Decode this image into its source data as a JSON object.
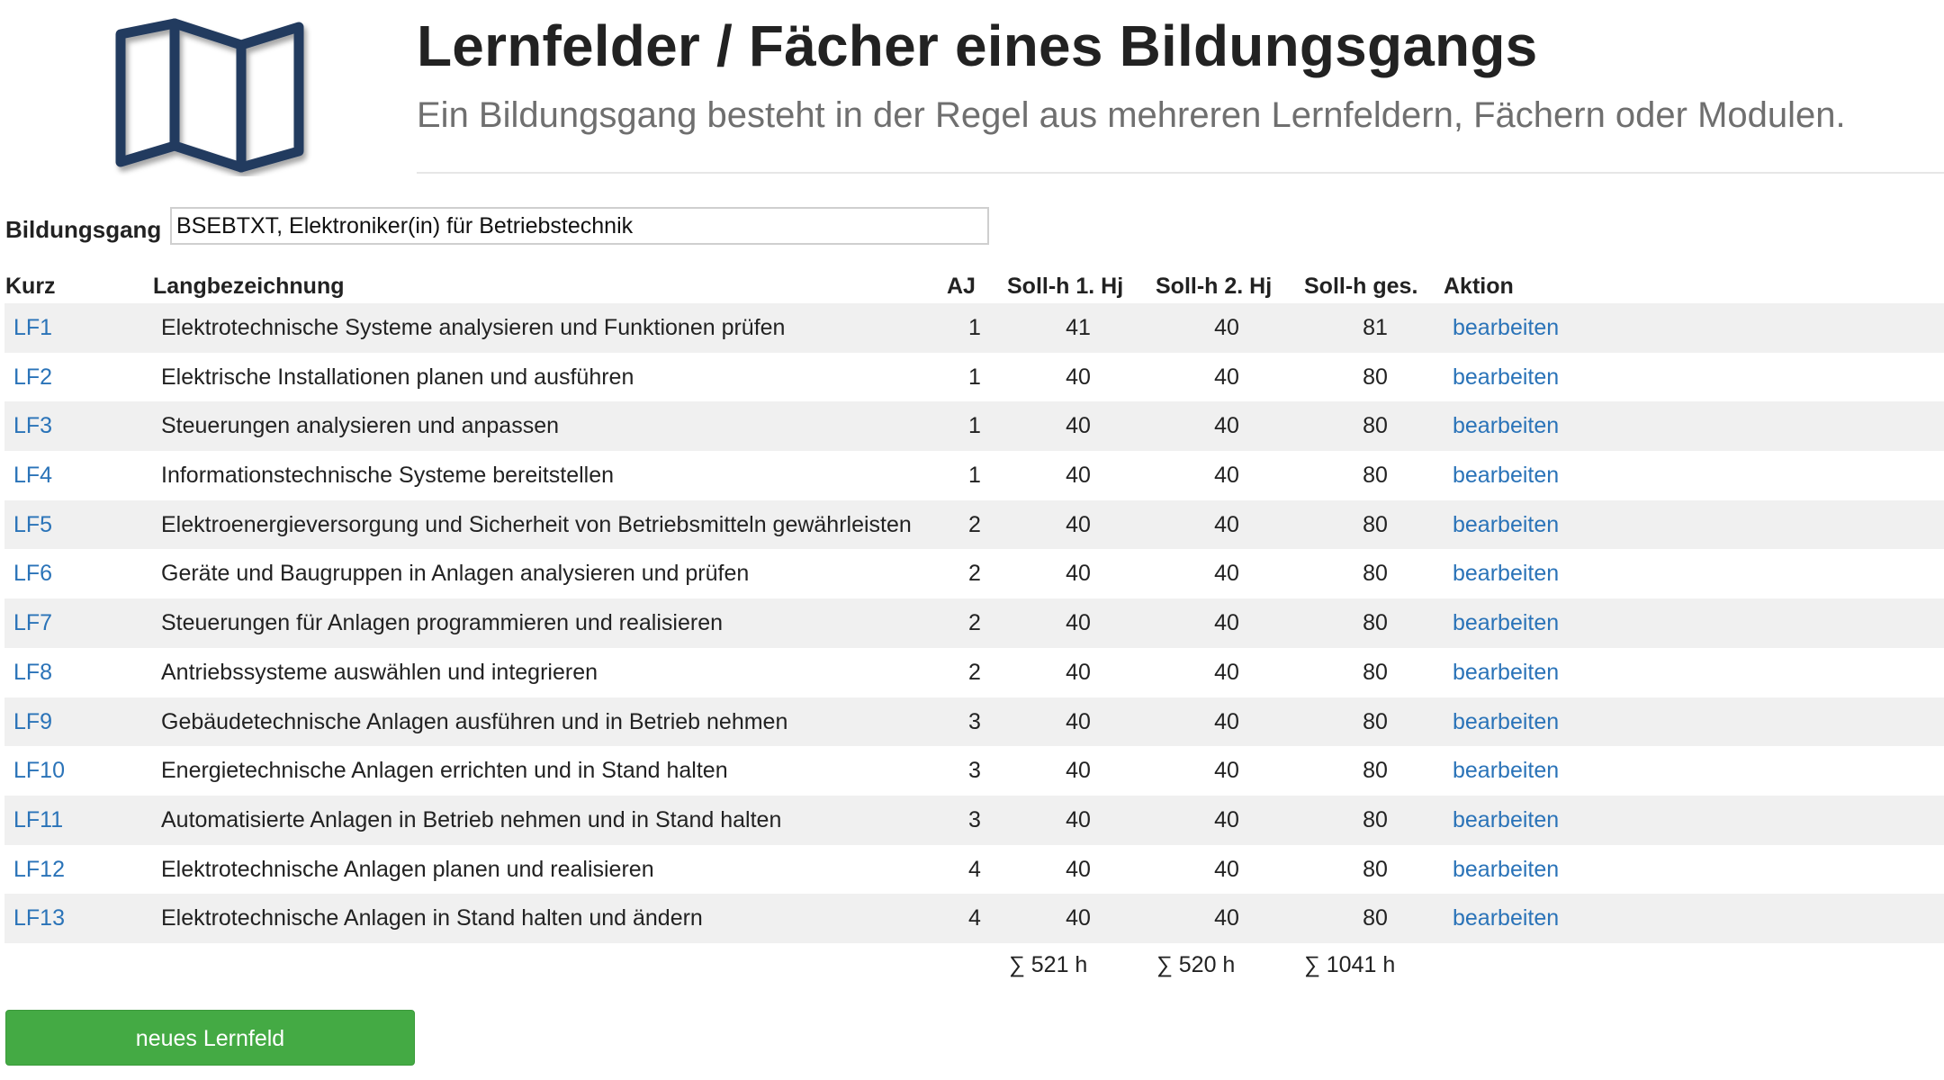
{
  "header": {
    "logo_icon": "folded-map-icon",
    "title": "Lernfelder / Fächer eines Bildungsgangs",
    "subtitle": "Ein Bildungsgang besteht in der Regel aus mehreren Lernfeldern, Fächern oder Modulen."
  },
  "form": {
    "bildungsgang_label": "Bildungsgang",
    "bildungsgang_value": "BSEBTXT, Elektroniker(in) für Betriebstechnik"
  },
  "table": {
    "headers": {
      "kurz": "Kurz",
      "lang": "Langbezeichnung",
      "aj": "AJ",
      "h1": "Soll-h 1. Hj",
      "h2": "Soll-h 2. Hj",
      "hg": "Soll-h ges.",
      "aktion": "Aktion"
    },
    "rows": [
      {
        "kurz": "LF1",
        "lang": "Elektrotechnische Systeme analysieren und Funktionen prüfen",
        "aj": "1",
        "h1": "41",
        "h2": "40",
        "hg": "81",
        "action": "bearbeiten"
      },
      {
        "kurz": "LF2",
        "lang": "Elektrische Installationen planen und ausführen",
        "aj": "1",
        "h1": "40",
        "h2": "40",
        "hg": "80",
        "action": "bearbeiten"
      },
      {
        "kurz": "LF3",
        "lang": "Steuerungen analysieren und anpassen",
        "aj": "1",
        "h1": "40",
        "h2": "40",
        "hg": "80",
        "action": "bearbeiten"
      },
      {
        "kurz": "LF4",
        "lang": "Informationstechnische Systeme bereitstellen",
        "aj": "1",
        "h1": "40",
        "h2": "40",
        "hg": "80",
        "action": "bearbeiten"
      },
      {
        "kurz": "LF5",
        "lang": "Elektroenergieversorgung und Sicherheit von Betriebsmitteln gewährleisten",
        "aj": "2",
        "h1": "40",
        "h2": "40",
        "hg": "80",
        "action": "bearbeiten"
      },
      {
        "kurz": "LF6",
        "lang": "Geräte und Baugruppen in Anlagen analysieren und prüfen",
        "aj": "2",
        "h1": "40",
        "h2": "40",
        "hg": "80",
        "action": "bearbeiten"
      },
      {
        "kurz": "LF7",
        "lang": "Steuerungen für Anlagen programmieren und realisieren",
        "aj": "2",
        "h1": "40",
        "h2": "40",
        "hg": "80",
        "action": "bearbeiten"
      },
      {
        "kurz": "LF8",
        "lang": "Antriebssysteme auswählen und integrieren",
        "aj": "2",
        "h1": "40",
        "h2": "40",
        "hg": "80",
        "action": "bearbeiten"
      },
      {
        "kurz": "LF9",
        "lang": "Gebäudetechnische Anlagen ausführen und in Betrieb nehmen",
        "aj": "3",
        "h1": "40",
        "h2": "40",
        "hg": "80",
        "action": "bearbeiten"
      },
      {
        "kurz": "LF10",
        "lang": "Energietechnische Anlagen errichten und in Stand halten",
        "aj": "3",
        "h1": "40",
        "h2": "40",
        "hg": "80",
        "action": "bearbeiten"
      },
      {
        "kurz": "LF11",
        "lang": "Automatisierte Anlagen in Betrieb nehmen und in Stand halten",
        "aj": "3",
        "h1": "40",
        "h2": "40",
        "hg": "80",
        "action": "bearbeiten"
      },
      {
        "kurz": "LF12",
        "lang": "Elektrotechnische Anlagen planen und realisieren",
        "aj": "4",
        "h1": "40",
        "h2": "40",
        "hg": "80",
        "action": "bearbeiten"
      },
      {
        "kurz": "LF13",
        "lang": "Elektrotechnische Anlagen in Stand halten und ändern",
        "aj": "4",
        "h1": "40",
        "h2": "40",
        "hg": "80",
        "action": "bearbeiten"
      }
    ],
    "sums": {
      "h1": "∑ 521 h",
      "h2": "∑ 520 h",
      "hg": "∑ 1041 h"
    }
  },
  "actions": {
    "new_label": "neues Lernfeld"
  },
  "colors": {
    "link": "#2a73b8",
    "button": "#44aa44",
    "stripe": "#f0f0f0",
    "logo_stroke": "#243a5e"
  }
}
